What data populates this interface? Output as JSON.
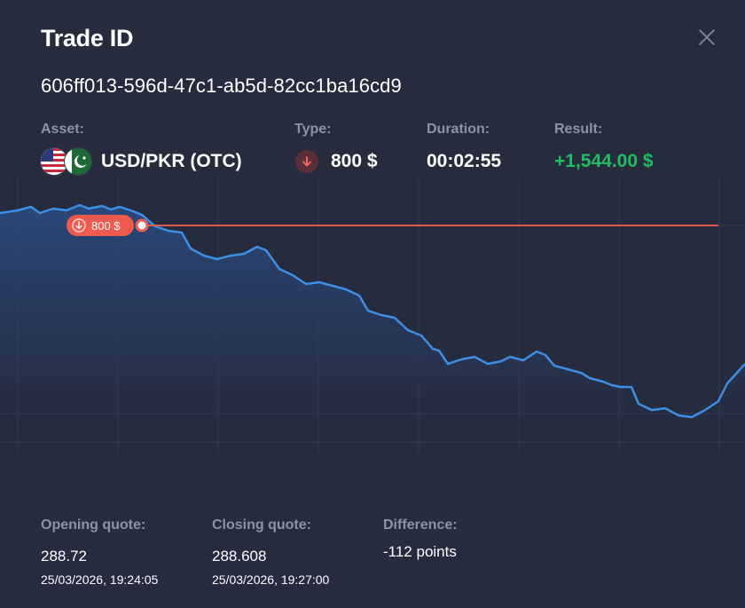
{
  "header": {
    "title": "Trade ID",
    "trade_id": "606ff013-596d-47c1-ab5d-82cc1ba16cd9"
  },
  "info": {
    "asset_label": "Asset:",
    "asset_value": "USD/PKR (OTC)",
    "type_label": "Type:",
    "type_value": "800 $",
    "type_direction": "down-arrow-icon",
    "duration_label": "Duration:",
    "duration_value": "00:02:55",
    "result_label": "Result:",
    "result_value": "+1,544.00 $"
  },
  "chart": {
    "entry_badge": "800 $",
    "line_color": "#3c8fe6",
    "entry_line_color": "#e2574c",
    "badge_color": "#ef5a4f"
  },
  "quotes": {
    "opening_label": "Opening quote:",
    "opening_value": "288.72",
    "opening_time": "25/03/2026, 19:24:05",
    "closing_label": "Closing quote:",
    "closing_value": "288.608",
    "closing_time": "25/03/2026, 19:27:00",
    "difference_label": "Difference:",
    "difference_value": "-112 points"
  },
  "colors": {
    "background": "#262b3e",
    "label": "#8d93a5",
    "positive": "#1fbe62"
  }
}
